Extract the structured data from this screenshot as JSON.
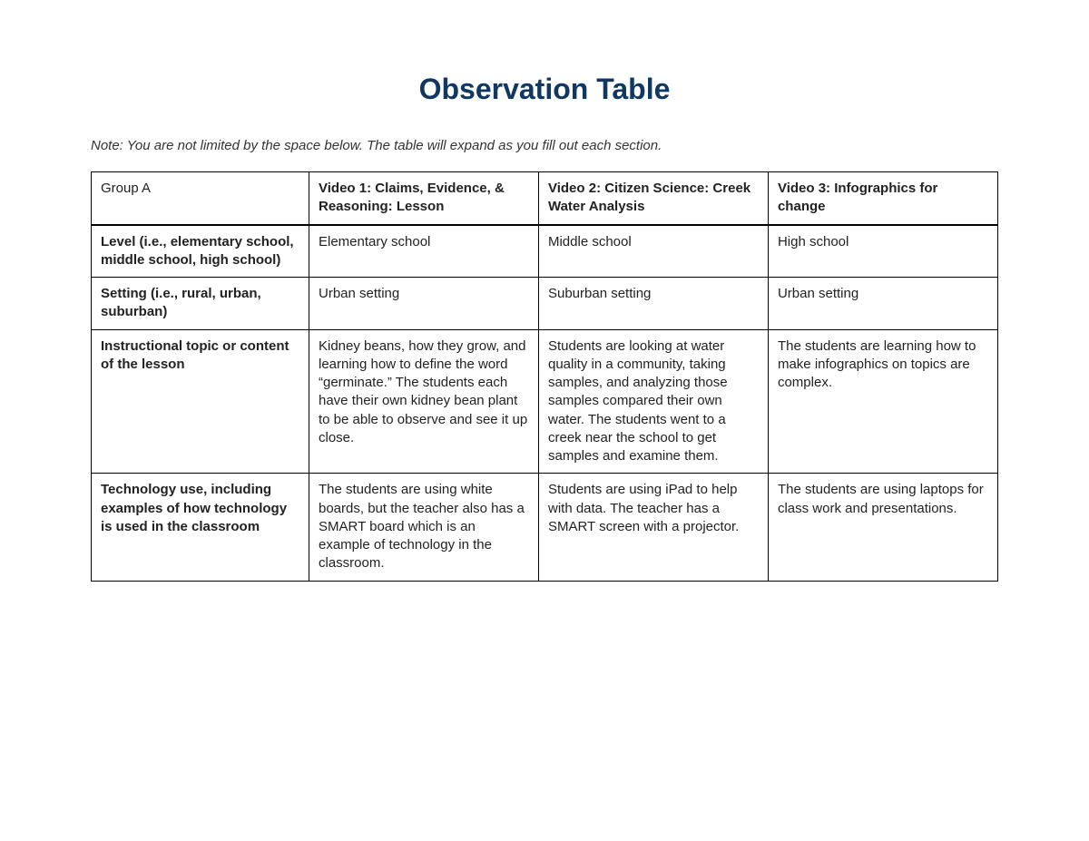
{
  "title": "Observation Table",
  "note": "Note: You are not limited by the space below. The table will expand as you fill out each section.",
  "table": {
    "header": {
      "group_label": "Group A",
      "columns": [
        "Video 1: Claims, Evidence, & Reasoning: Lesson",
        "Video 2: Citizen Science: Creek Water Analysis",
        "Video 3: Infographics for change"
      ]
    },
    "rows": [
      {
        "label": "Level (i.e., elementary school, middle school, high school)",
        "cells": [
          "Elementary school",
          "Middle school",
          "High school"
        ]
      },
      {
        "label": "Setting (i.e., rural, urban, suburban)",
        "cells": [
          "Urban setting",
          "Suburban setting",
          "Urban setting"
        ]
      },
      {
        "label": "Instructional topic or content of the lesson",
        "cells": [
          "Kidney beans, how they grow, and learning how to define the word “germinate.” The students each have their own kidney bean plant to be able to observe and see it up close.",
          "Students are looking at water quality in a community, taking samples, and analyzing those samples compared their own water. The students went to a creek near the school to get samples and examine them.",
          "The students are learning how to make infographics on topics are complex."
        ]
      },
      {
        "label": "Technology use, including examples of how technology is used in the classroom",
        "cells": [
          "The students are using white boards, but the teacher also has a SMART board which is an example of technology in the classroom.",
          "Students are using iPad to help with data. The teacher has a SMART screen with a projector.",
          "The students are using laptops for class work and presentations."
        ]
      }
    ]
  },
  "styling": {
    "title_color": "#103860",
    "title_fontsize": 32,
    "body_fontsize": 15,
    "border_color": "#000000",
    "background_color": "#ffffff",
    "text_color": "#222222"
  }
}
